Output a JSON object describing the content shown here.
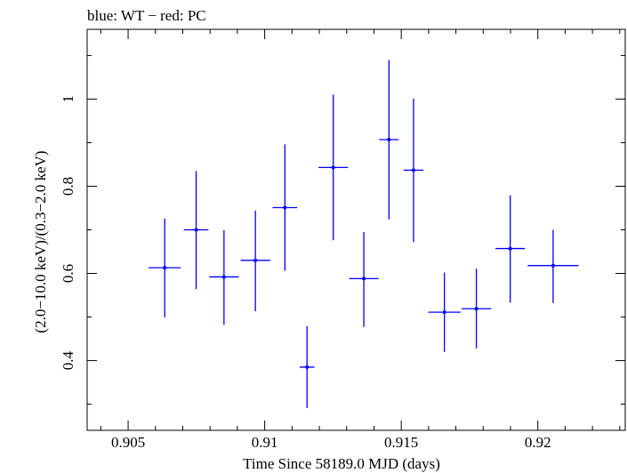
{
  "chart_data": {
    "type": "scatter",
    "title": "blue: WT − red: PC",
    "xlabel": "Time Since 58189.0 MJD (days)",
    "ylabel": "(2.0−10.0 keV)/(0.3−2.0 keV)",
    "xlim": [
      0.9035,
      0.9232
    ],
    "ylim": [
      0.24,
      1.16
    ],
    "x_ticks": [
      {
        "value": 0.905,
        "label": "0.905"
      },
      {
        "value": 0.91,
        "label": "0.91"
      },
      {
        "value": 0.915,
        "label": "0.915"
      },
      {
        "value": 0.92,
        "label": "0.92"
      }
    ],
    "y_ticks": [
      {
        "value": 0.4,
        "label": "0.4"
      },
      {
        "value": 0.6,
        "label": "0.6"
      },
      {
        "value": 0.8,
        "label": "0.8"
      },
      {
        "value": 1.0,
        "label": "1"
      }
    ],
    "grid": false,
    "series": [
      {
        "color": "#0000ff",
        "points": [
          {
            "x": 0.90634,
            "y": 0.613,
            "xerr": 0.00059,
            "ylo": 0.499,
            "yhi": 0.726
          },
          {
            "x": 0.90749,
            "y": 0.7,
            "xerr": 0.00045,
            "ylo": 0.564,
            "yhi": 0.835
          },
          {
            "x": 0.90851,
            "y": 0.592,
            "xerr": 0.00054,
            "ylo": 0.482,
            "yhi": 0.699
          },
          {
            "x": 0.90966,
            "y": 0.63,
            "xerr": 0.00054,
            "ylo": 0.513,
            "yhi": 0.744
          },
          {
            "x": 0.91074,
            "y": 0.751,
            "xerr": 0.00045,
            "ylo": 0.606,
            "yhi": 0.896
          },
          {
            "x": 0.91155,
            "y": 0.385,
            "xerr": 0.00027,
            "ylo": 0.291,
            "yhi": 0.479
          },
          {
            "x": 0.91251,
            "y": 0.843,
            "xerr": 0.00054,
            "ylo": 0.676,
            "yhi": 1.01
          },
          {
            "x": 0.91363,
            "y": 0.588,
            "xerr": 0.00054,
            "ylo": 0.477,
            "yhi": 0.695
          },
          {
            "x": 0.91455,
            "y": 0.907,
            "xerr": 0.00036,
            "ylo": 0.724,
            "yhi": 1.09
          },
          {
            "x": 0.91545,
            "y": 0.837,
            "xerr": 0.00036,
            "ylo": 0.672,
            "yhi": 1.001
          },
          {
            "x": 0.91658,
            "y": 0.511,
            "xerr": 0.00059,
            "ylo": 0.42,
            "yhi": 0.602
          },
          {
            "x": 0.91775,
            "y": 0.519,
            "xerr": 0.00054,
            "ylo": 0.428,
            "yhi": 0.611
          },
          {
            "x": 0.91899,
            "y": 0.657,
            "xerr": 0.00054,
            "ylo": 0.533,
            "yhi": 0.779
          },
          {
            "x": 0.92056,
            "y": 0.618,
            "xerr": 0.00093,
            "ylo": 0.532,
            "yhi": 0.7
          }
        ]
      }
    ]
  }
}
